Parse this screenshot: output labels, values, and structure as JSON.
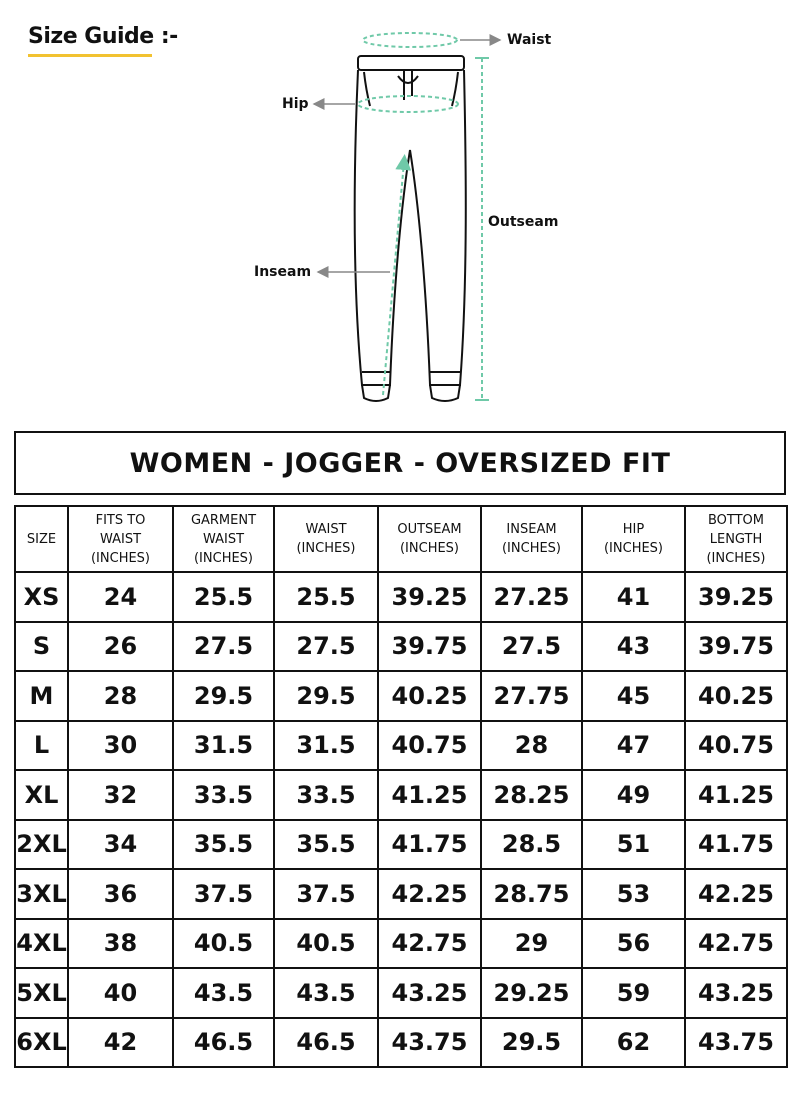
{
  "header": {
    "title": "Size Guide :-"
  },
  "diagram": {
    "labels": {
      "waist": "Waist",
      "hip": "Hip",
      "outseam": "Outseam",
      "inseam": "Inseam"
    }
  },
  "table": {
    "title": "WOMEN - JOGGER - OVERSIZED FIT",
    "headers": [
      [
        "SIZE"
      ],
      [
        "FITS TO",
        "WAIST",
        "(INCHES)"
      ],
      [
        "GARMENT",
        "WAIST",
        "(INCHES)"
      ],
      [
        "WAIST",
        "(INCHES)"
      ],
      [
        "OUTSEAM",
        "(INCHES)"
      ],
      [
        "INSEAM",
        "(INCHES)"
      ],
      [
        "HIP",
        "(INCHES)"
      ],
      [
        "BOTTOM",
        "LENGTH",
        "(INCHES)"
      ]
    ],
    "rows": [
      [
        "XS",
        24,
        25.5,
        25.5,
        39.25,
        27.25,
        41,
        39.25
      ],
      [
        "S",
        26,
        27.5,
        27.5,
        39.75,
        27.5,
        43,
        39.75
      ],
      [
        "M",
        28,
        29.5,
        29.5,
        40.25,
        27.75,
        45,
        40.25
      ],
      [
        "L",
        30,
        31.5,
        31.5,
        40.75,
        28,
        47,
        40.75
      ],
      [
        "XL",
        32,
        33.5,
        33.5,
        41.25,
        28.25,
        49,
        41.25
      ],
      [
        "2XL",
        34,
        35.5,
        35.5,
        41.75,
        28.5,
        51,
        41.75
      ],
      [
        "3XL",
        36,
        37.5,
        37.5,
        42.25,
        28.75,
        53,
        42.25
      ],
      [
        "4XL",
        38,
        40.5,
        40.5,
        42.75,
        29,
        56,
        42.75
      ],
      [
        "5XL",
        40,
        43.5,
        43.5,
        43.25,
        29.25,
        59,
        43.25
      ],
      [
        "6XL",
        42,
        46.5,
        46.5,
        43.75,
        29.5,
        62,
        43.75
      ]
    ]
  }
}
